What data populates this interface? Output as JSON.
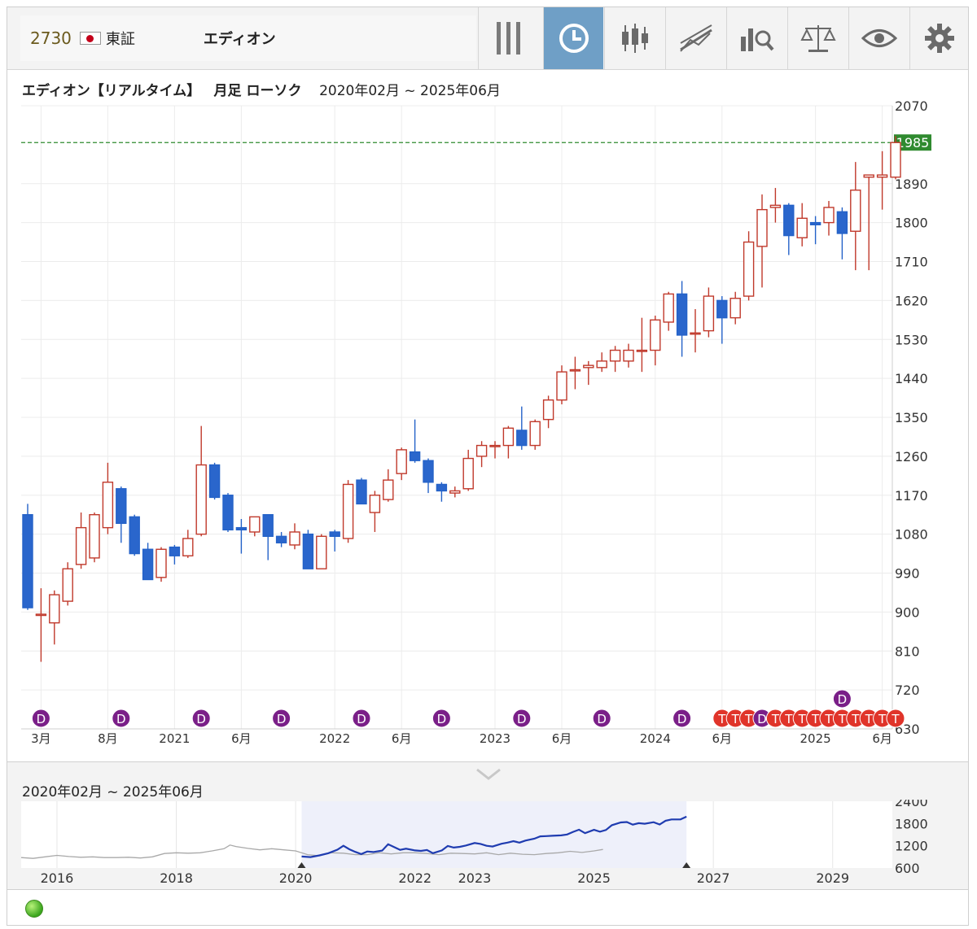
{
  "header": {
    "code": "2730",
    "exchange": "東証",
    "name": "エディオン"
  },
  "toolbar": {
    "buttons": [
      {
        "icon": "columns-icon"
      },
      {
        "icon": "clock-icon",
        "active": true
      },
      {
        "icon": "candlestick-icon"
      },
      {
        "icon": "trendline-icon"
      },
      {
        "icon": "bar-search-icon"
      },
      {
        "icon": "balance-scale-icon"
      },
      {
        "icon": "eye-icon"
      },
      {
        "icon": "gear-icon"
      }
    ]
  },
  "chart_title": {
    "name": "エディオン【リアルタイム】",
    "period": "月足 ローソク",
    "range": "2020年02月 ~ 2025年06月"
  },
  "chart_data": {
    "type": "candlestick",
    "ylim": [
      630,
      2070
    ],
    "y_ticks": [
      630,
      720,
      810,
      900,
      990,
      1080,
      1170,
      1260,
      1350,
      1440,
      1530,
      1620,
      1710,
      1800,
      1890,
      1985,
      2070
    ],
    "last_price": 1985,
    "x_labels": [
      {
        "label": "3月",
        "index": 1
      },
      {
        "label": "8月",
        "index": 6
      },
      {
        "label": "2021",
        "index": 11
      },
      {
        "label": "6月",
        "index": 16
      },
      {
        "label": "2022",
        "index": 23
      },
      {
        "label": "6月",
        "index": 28
      },
      {
        "label": "2023",
        "index": 35
      },
      {
        "label": "6月",
        "index": 40
      },
      {
        "label": "2024",
        "index": 47
      },
      {
        "label": "6月",
        "index": 52
      },
      {
        "label": "2025",
        "index": 59
      },
      {
        "label": "6月",
        "index": 64
      }
    ],
    "candles": [
      {
        "o": 1125,
        "h": 1150,
        "l": 905,
        "c": 910
      },
      {
        "o": 895,
        "h": 955,
        "l": 785,
        "c": 895
      },
      {
        "o": 875,
        "h": 950,
        "l": 825,
        "c": 940
      },
      {
        "o": 925,
        "h": 1015,
        "l": 915,
        "c": 1000
      },
      {
        "o": 1010,
        "h": 1130,
        "l": 1000,
        "c": 1095
      },
      {
        "o": 1025,
        "h": 1130,
        "l": 1015,
        "c": 1125
      },
      {
        "o": 1095,
        "h": 1245,
        "l": 1080,
        "c": 1200
      },
      {
        "o": 1185,
        "h": 1190,
        "l": 1060,
        "c": 1105
      },
      {
        "o": 1120,
        "h": 1125,
        "l": 1030,
        "c": 1035
      },
      {
        "o": 1045,
        "h": 1060,
        "l": 975,
        "c": 975
      },
      {
        "o": 980,
        "h": 1050,
        "l": 970,
        "c": 1045
      },
      {
        "o": 1050,
        "h": 1055,
        "l": 1010,
        "c": 1030
      },
      {
        "o": 1030,
        "h": 1090,
        "l": 1025,
        "c": 1070
      },
      {
        "o": 1080,
        "h": 1330,
        "l": 1075,
        "c": 1240
      },
      {
        "o": 1240,
        "h": 1245,
        "l": 1160,
        "c": 1165
      },
      {
        "o": 1170,
        "h": 1175,
        "l": 1085,
        "c": 1090
      },
      {
        "o": 1095,
        "h": 1115,
        "l": 1035,
        "c": 1090
      },
      {
        "o": 1085,
        "h": 1120,
        "l": 1075,
        "c": 1120
      },
      {
        "o": 1125,
        "h": 1125,
        "l": 1020,
        "c": 1075
      },
      {
        "o": 1075,
        "h": 1085,
        "l": 1050,
        "c": 1060
      },
      {
        "o": 1055,
        "h": 1105,
        "l": 1045,
        "c": 1085
      },
      {
        "o": 1080,
        "h": 1090,
        "l": 1000,
        "c": 1000
      },
      {
        "o": 1000,
        "h": 1080,
        "l": 1000,
        "c": 1075
      },
      {
        "o": 1085,
        "h": 1090,
        "l": 1040,
        "c": 1075
      },
      {
        "o": 1070,
        "h": 1205,
        "l": 1060,
        "c": 1195
      },
      {
        "o": 1205,
        "h": 1210,
        "l": 1150,
        "c": 1150
      },
      {
        "o": 1130,
        "h": 1180,
        "l": 1085,
        "c": 1170
      },
      {
        "o": 1160,
        "h": 1230,
        "l": 1155,
        "c": 1205
      },
      {
        "o": 1220,
        "h": 1280,
        "l": 1205,
        "c": 1275
      },
      {
        "o": 1270,
        "h": 1345,
        "l": 1245,
        "c": 1250
      },
      {
        "o": 1250,
        "h": 1255,
        "l": 1175,
        "c": 1200
      },
      {
        "o": 1195,
        "h": 1200,
        "l": 1155,
        "c": 1180
      },
      {
        "o": 1175,
        "h": 1190,
        "l": 1165,
        "c": 1180
      },
      {
        "o": 1185,
        "h": 1275,
        "l": 1180,
        "c": 1255
      },
      {
        "o": 1260,
        "h": 1295,
        "l": 1235,
        "c": 1285
      },
      {
        "o": 1285,
        "h": 1295,
        "l": 1255,
        "c": 1285
      },
      {
        "o": 1285,
        "h": 1330,
        "l": 1255,
        "c": 1325
      },
      {
        "o": 1320,
        "h": 1375,
        "l": 1275,
        "c": 1285
      },
      {
        "o": 1285,
        "h": 1345,
        "l": 1275,
        "c": 1340
      },
      {
        "o": 1345,
        "h": 1400,
        "l": 1325,
        "c": 1390
      },
      {
        "o": 1390,
        "h": 1470,
        "l": 1380,
        "c": 1455
      },
      {
        "o": 1460,
        "h": 1490,
        "l": 1415,
        "c": 1460
      },
      {
        "o": 1465,
        "h": 1480,
        "l": 1425,
        "c": 1470
      },
      {
        "o": 1465,
        "h": 1500,
        "l": 1455,
        "c": 1480
      },
      {
        "o": 1480,
        "h": 1515,
        "l": 1455,
        "c": 1505
      },
      {
        "o": 1480,
        "h": 1520,
        "l": 1465,
        "c": 1505
      },
      {
        "o": 1505,
        "h": 1580,
        "l": 1455,
        "c": 1505
      },
      {
        "o": 1505,
        "h": 1585,
        "l": 1470,
        "c": 1575
      },
      {
        "o": 1570,
        "h": 1640,
        "l": 1550,
        "c": 1635
      },
      {
        "o": 1635,
        "h": 1665,
        "l": 1490,
        "c": 1540
      },
      {
        "o": 1545,
        "h": 1600,
        "l": 1500,
        "c": 1545
      },
      {
        "o": 1550,
        "h": 1650,
        "l": 1535,
        "c": 1630
      },
      {
        "o": 1620,
        "h": 1630,
        "l": 1520,
        "c": 1580
      },
      {
        "o": 1580,
        "h": 1640,
        "l": 1565,
        "c": 1625
      },
      {
        "o": 1630,
        "h": 1780,
        "l": 1620,
        "c": 1755
      },
      {
        "o": 1745,
        "h": 1865,
        "l": 1650,
        "c": 1830
      },
      {
        "o": 1835,
        "h": 1880,
        "l": 1800,
        "c": 1840
      },
      {
        "o": 1840,
        "h": 1845,
        "l": 1725,
        "c": 1770
      },
      {
        "o": 1765,
        "h": 1845,
        "l": 1745,
        "c": 1810
      },
      {
        "o": 1800,
        "h": 1815,
        "l": 1750,
        "c": 1795
      },
      {
        "o": 1800,
        "h": 1850,
        "l": 1770,
        "c": 1835
      },
      {
        "o": 1825,
        "h": 1835,
        "l": 1715,
        "c": 1775
      },
      {
        "o": 1780,
        "h": 1940,
        "l": 1690,
        "c": 1875
      },
      {
        "o": 1905,
        "h": 1910,
        "l": 1690,
        "c": 1910
      },
      {
        "o": 1905,
        "h": 1965,
        "l": 1830,
        "c": 1910
      },
      {
        "o": 1905,
        "h": 2000,
        "l": 1900,
        "c": 1985
      }
    ],
    "event_markers": [
      {
        "label": "D",
        "index": 1
      },
      {
        "label": "D",
        "index": 7
      },
      {
        "label": "D",
        "index": 13
      },
      {
        "label": "D",
        "index": 19
      },
      {
        "label": "D",
        "index": 25
      },
      {
        "label": "D",
        "index": 31
      },
      {
        "label": "D",
        "index": 37
      },
      {
        "label": "D",
        "index": 43
      },
      {
        "label": "D",
        "index": 49
      },
      {
        "label": "T",
        "index": 52
      },
      {
        "label": "T",
        "index": 53
      },
      {
        "label": "T",
        "index": 54
      },
      {
        "label": "D",
        "index": 55
      },
      {
        "label": "T",
        "index": 56
      },
      {
        "label": "T",
        "index": 57
      },
      {
        "label": "T",
        "index": 58
      },
      {
        "label": "T",
        "index": 59
      },
      {
        "label": "T",
        "index": 60
      },
      {
        "label": "T",
        "index": 61
      },
      {
        "label": "T",
        "index": 62
      },
      {
        "label": "T",
        "index": 63
      },
      {
        "label": "T",
        "index": 64
      },
      {
        "label": "T",
        "index": 65
      },
      {
        "label": "D",
        "index": 61,
        "raised": true
      }
    ]
  },
  "navigator": {
    "range": "2020年02月 ~ 2025年06月",
    "y_ticks": [
      600,
      1200,
      1800,
      2400
    ],
    "ylim": [
      600,
      2400
    ],
    "x_labels": [
      "2016",
      "2018",
      "2020",
      "2022",
      "2023",
      "2025",
      "2027",
      "2029"
    ],
    "x_label_years": [
      2016,
      2018,
      2020,
      2022,
      2023,
      2025,
      2027,
      2029
    ],
    "xlim": [
      2015.4,
      2030.0
    ],
    "history": [
      [
        2015.4,
        880
      ],
      [
        2015.6,
        860
      ],
      [
        2015.8,
        900
      ],
      [
        2016.0,
        940
      ],
      [
        2016.2,
        910
      ],
      [
        2016.4,
        890
      ],
      [
        2016.6,
        900
      ],
      [
        2016.8,
        880
      ],
      [
        2017.0,
        880
      ],
      [
        2017.2,
        890
      ],
      [
        2017.4,
        870
      ],
      [
        2017.6,
        900
      ],
      [
        2017.8,
        990
      ],
      [
        2018.0,
        1010
      ],
      [
        2018.2,
        1000
      ],
      [
        2018.4,
        1010
      ],
      [
        2018.6,
        1060
      ],
      [
        2018.8,
        1120
      ],
      [
        2018.9,
        1220
      ],
      [
        2019.0,
        1180
      ],
      [
        2019.2,
        1130
      ],
      [
        2019.4,
        1090
      ],
      [
        2019.6,
        1120
      ],
      [
        2019.8,
        1090
      ],
      [
        2020.0,
        1060
      ],
      [
        2020.2,
        960
      ],
      [
        2020.4,
        930
      ],
      [
        2020.6,
        1010
      ],
      [
        2020.8,
        1000
      ],
      [
        2021.0,
        960
      ],
      [
        2021.2,
        960
      ],
      [
        2021.4,
        1010
      ],
      [
        2021.6,
        980
      ],
      [
        2021.8,
        1010
      ],
      [
        2022.0,
        1010
      ],
      [
        2022.2,
        990
      ],
      [
        2022.4,
        960
      ],
      [
        2022.6,
        1000
      ],
      [
        2022.8,
        990
      ],
      [
        2023.0,
        980
      ],
      [
        2023.2,
        1010
      ],
      [
        2023.4,
        960
      ],
      [
        2023.6,
        1000
      ],
      [
        2023.8,
        970
      ],
      [
        2024.0,
        960
      ],
      [
        2024.2,
        990
      ],
      [
        2024.4,
        1010
      ],
      [
        2024.6,
        1050
      ],
      [
        2024.8,
        1020
      ],
      [
        2025.0,
        1060
      ],
      [
        2025.15,
        1100
      ]
    ],
    "selected": [
      [
        2020.1,
        910
      ],
      [
        2020.25,
        895
      ],
      [
        2020.4,
        940
      ],
      [
        2020.55,
        1000
      ],
      [
        2020.7,
        1095
      ],
      [
        2020.8,
        1200
      ],
      [
        2020.9,
        1105
      ],
      [
        2021.0,
        1035
      ],
      [
        2021.1,
        975
      ],
      [
        2021.2,
        1045
      ],
      [
        2021.3,
        1030
      ],
      [
        2021.45,
        1070
      ],
      [
        2021.55,
        1240
      ],
      [
        2021.65,
        1165
      ],
      [
        2021.75,
        1090
      ],
      [
        2021.85,
        1120
      ],
      [
        2022.0,
        1075
      ],
      [
        2022.1,
        1060
      ],
      [
        2022.2,
        1085
      ],
      [
        2022.3,
        1000
      ],
      [
        2022.45,
        1075
      ],
      [
        2022.55,
        1195
      ],
      [
        2022.65,
        1150
      ],
      [
        2022.75,
        1170
      ],
      [
        2022.85,
        1205
      ],
      [
        2023.0,
        1275
      ],
      [
        2023.1,
        1250
      ],
      [
        2023.2,
        1200
      ],
      [
        2023.3,
        1180
      ],
      [
        2023.45,
        1255
      ],
      [
        2023.55,
        1285
      ],
      [
        2023.65,
        1325
      ],
      [
        2023.75,
        1285
      ],
      [
        2023.85,
        1340
      ],
      [
        2024.0,
        1390
      ],
      [
        2024.1,
        1455
      ],
      [
        2024.2,
        1460
      ],
      [
        2024.3,
        1470
      ],
      [
        2024.45,
        1480
      ],
      [
        2024.55,
        1505
      ],
      [
        2024.65,
        1575
      ],
      [
        2024.75,
        1635
      ],
      [
        2024.85,
        1540
      ],
      [
        2025.0,
        1630
      ],
      [
        2025.1,
        1580
      ],
      [
        2025.2,
        1625
      ],
      [
        2025.3,
        1755
      ],
      [
        2025.45,
        1830
      ],
      [
        2025.55,
        1840
      ],
      [
        2025.65,
        1770
      ],
      [
        2025.75,
        1810
      ],
      [
        2025.85,
        1795
      ],
      [
        2026.0,
        1835
      ],
      [
        2026.1,
        1775
      ],
      [
        2026.2,
        1875
      ],
      [
        2026.3,
        1910
      ],
      [
        2026.45,
        1910
      ],
      [
        2026.55,
        1985
      ]
    ],
    "selection_start": 2020.1,
    "selection_end": 2026.55
  }
}
